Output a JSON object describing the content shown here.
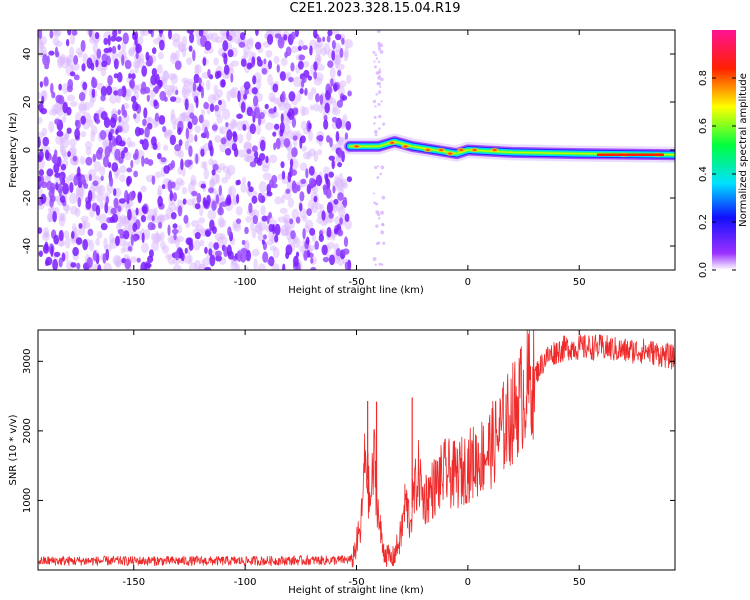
{
  "title": "C2E1.2023.328.15.04.R19",
  "chart_data": [
    {
      "type": "heatmap",
      "xlabel": "Height of straight line (km)",
      "ylabel": "Frequency (Hz)",
      "xlim": [
        -193,
        93
      ],
      "ylim": [
        -50,
        50
      ],
      "xticks": [
        -150,
        -100,
        -50,
        0,
        50
      ],
      "yticks": [
        -40,
        -20,
        0,
        20,
        40
      ],
      "noise_region_x": [
        -193,
        -53
      ],
      "signal_track": [
        {
          "x": -53,
          "y": 1.5
        },
        {
          "x": -40,
          "y": 1.5
        },
        {
          "x": -33,
          "y": 3.5
        },
        {
          "x": -25,
          "y": 1.5
        },
        {
          "x": -15,
          "y": 0
        },
        {
          "x": -5,
          "y": -1.5
        },
        {
          "x": 0,
          "y": 0
        },
        {
          "x": 20,
          "y": -1
        },
        {
          "x": 50,
          "y": -1.5
        },
        {
          "x": 93,
          "y": -2
        }
      ],
      "peak_points": [
        {
          "x": -50,
          "y": 1.5
        },
        {
          "x": -34,
          "y": 3
        },
        {
          "x": -28,
          "y": 1.5
        },
        {
          "x": -18,
          "y": 0
        },
        {
          "x": -12,
          "y": 0
        },
        {
          "x": -8,
          "y": -1.5
        },
        {
          "x": -3,
          "y": 0
        },
        {
          "x": 3,
          "y": 0
        },
        {
          "x": 12,
          "y": 0
        },
        {
          "x": 70,
          "y": -2
        },
        {
          "x": 85,
          "y": -2
        }
      ],
      "colorbar": {
        "label": "Normalized spectral amplitude",
        "range": [
          0,
          1
        ],
        "ticks": [
          "0.0",
          "0.2",
          "0.4",
          "0.6",
          "0.8"
        ],
        "palette": [
          "#ffffff",
          "#8b00ff",
          "#0000ff",
          "#00ffff",
          "#00ff00",
          "#ffff00",
          "#ff0000",
          "#ff00aa"
        ]
      }
    },
    {
      "type": "line",
      "xlabel": "Height of straight line (km)",
      "ylabel": "SNR (10 * v/v)",
      "xlim": [
        -193,
        93
      ],
      "ylim": [
        0,
        3450
      ],
      "xticks": [
        -150,
        -100,
        -50,
        0,
        50
      ],
      "yticks": [
        1000,
        2000,
        3000
      ],
      "color": "#ee2a2a",
      "series": [
        {
          "x": [
            -193,
            -150,
            -100,
            -60,
            -52,
            -48,
            -46,
            -44,
            -42,
            -40,
            -38,
            -36,
            -34,
            -32,
            -30,
            -28,
            -26,
            -24,
            -22,
            -20,
            -15,
            -10,
            -5,
            0,
            5,
            10,
            15,
            20,
            25,
            30,
            35,
            40,
            45,
            50,
            60,
            70,
            80,
            93
          ],
          "y": [
            130,
            130,
            130,
            140,
            150,
            600,
            1700,
            900,
            1600,
            700,
            300,
            200,
            150,
            300,
            500,
            1000,
            700,
            1100,
            1400,
            1000,
            1200,
            1400,
            1350,
            1500,
            1600,
            1750,
            2000,
            2250,
            2550,
            2800,
            3050,
            3150,
            3200,
            3200,
            3200,
            3150,
            3150,
            3050
          ]
        }
      ],
      "spikes": [
        {
          "x": -45,
          "y": 2430
        },
        {
          "x": -41,
          "y": 2420
        },
        {
          "x": -25,
          "y": 2480
        }
      ]
    }
  ]
}
